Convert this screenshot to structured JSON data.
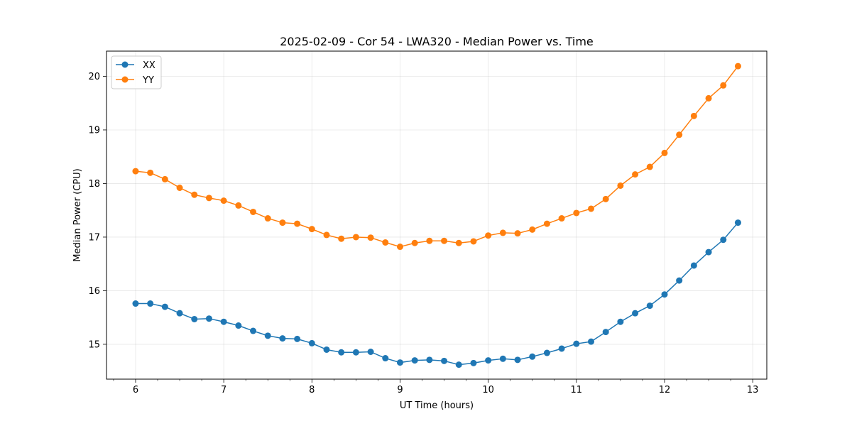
{
  "chart_data": {
    "type": "line",
    "title": "2025-02-09 - Cor 54 - LWA320 - Median Power vs. Time",
    "xlabel": "UT Time (hours)",
    "ylabel": "Median Power (CPU)",
    "xlim": [
      5.67,
      13.16
    ],
    "ylim": [
      14.35,
      20.47
    ],
    "xticks": [
      6,
      7,
      8,
      9,
      10,
      11,
      12,
      13
    ],
    "yticks": [
      15,
      16,
      17,
      18,
      19,
      20
    ],
    "grid": true,
    "legend_position": "top-left",
    "x": [
      6.0,
      6.1667,
      6.3333,
      6.5,
      6.6667,
      6.8333,
      7.0,
      7.1667,
      7.3333,
      7.5,
      7.6667,
      7.8333,
      8.0,
      8.1667,
      8.3333,
      8.5,
      8.6667,
      8.8333,
      9.0,
      9.1667,
      9.3333,
      9.5,
      9.6667,
      9.8333,
      10.0,
      10.1667,
      10.3333,
      10.5,
      10.6667,
      10.8333,
      11.0,
      11.1667,
      11.3333,
      11.5,
      11.6667,
      11.8333,
      12.0,
      12.1667,
      12.3333,
      12.5,
      12.6667,
      12.8333
    ],
    "series": [
      {
        "name": "XX",
        "color": "#1f77b4",
        "values": [
          15.76,
          15.76,
          15.7,
          15.58,
          15.47,
          15.48,
          15.42,
          15.35,
          15.25,
          15.16,
          15.11,
          15.1,
          15.02,
          14.9,
          14.85,
          14.85,
          14.86,
          14.74,
          14.66,
          14.7,
          14.71,
          14.69,
          14.62,
          14.65,
          14.7,
          14.73,
          14.71,
          14.77,
          14.84,
          14.92,
          15.01,
          15.05,
          15.23,
          15.42,
          15.58,
          15.72,
          15.93,
          16.19,
          16.47,
          16.72,
          16.95,
          17.27
        ]
      },
      {
        "name": "YY",
        "color": "#ff7f0e",
        "values": [
          18.23,
          18.2,
          18.08,
          17.92,
          17.79,
          17.73,
          17.68,
          17.59,
          17.47,
          17.35,
          17.27,
          17.25,
          17.15,
          17.04,
          16.97,
          17.0,
          16.99,
          16.9,
          16.82,
          16.89,
          16.93,
          16.93,
          16.89,
          16.92,
          17.03,
          17.08,
          17.07,
          17.14,
          17.25,
          17.35,
          17.45,
          17.53,
          17.71,
          17.96,
          18.17,
          18.31,
          18.57,
          18.91,
          19.26,
          19.59,
          19.83,
          20.19
        ]
      }
    ]
  }
}
